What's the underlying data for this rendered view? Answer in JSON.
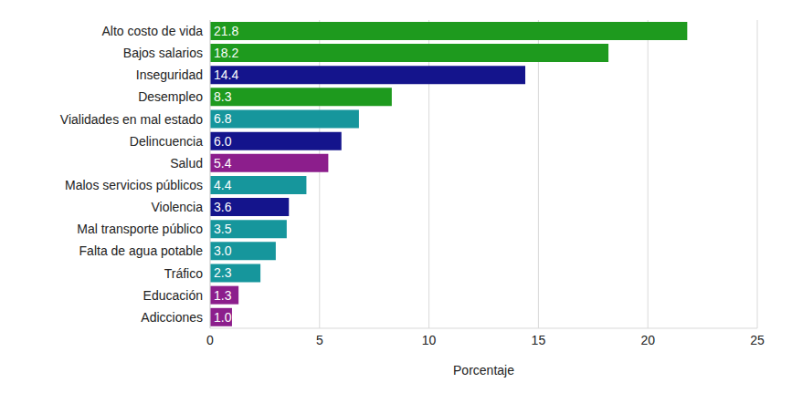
{
  "chart_data": {
    "type": "bar",
    "orientation": "horizontal",
    "x_label": "Porcentaje",
    "categories": [
      "Alto costo de vida",
      "Bajos salarios",
      "Inseguridad",
      "Desempleo",
      "Vialidades en mal estado",
      "Delincuencia",
      "Salud",
      "Malos servicios públicos",
      "Violencia",
      "Mal transporte público",
      "Falta de agua potable",
      "Tráfico",
      "Educación",
      "Adicciones"
    ],
    "values": [
      21.8,
      18.2,
      14.4,
      8.3,
      6.8,
      6.0,
      5.4,
      4.4,
      3.6,
      3.5,
      3.0,
      2.3,
      1.3,
      1.0
    ],
    "value_labels": [
      "21.8",
      "18.2",
      "14.4",
      "8.3",
      "6.8",
      "6.0",
      "5.4",
      "4.4",
      "3.6",
      "3.5",
      "3.0",
      "2.3",
      "1.3",
      "1.0"
    ],
    "colors": [
      "#1e9a1e",
      "#1e9a1e",
      "#14148c",
      "#1e9a1e",
      "#16969c",
      "#14148c",
      "#8c1e8c",
      "#16969c",
      "#14148c",
      "#16969c",
      "#16969c",
      "#16969c",
      "#8c1e8c",
      "#8c1e8c"
    ],
    "xlim": [
      0,
      25
    ],
    "xticks": [
      0,
      5,
      10,
      15,
      20,
      25
    ],
    "grid": true,
    "data_labels": true
  }
}
